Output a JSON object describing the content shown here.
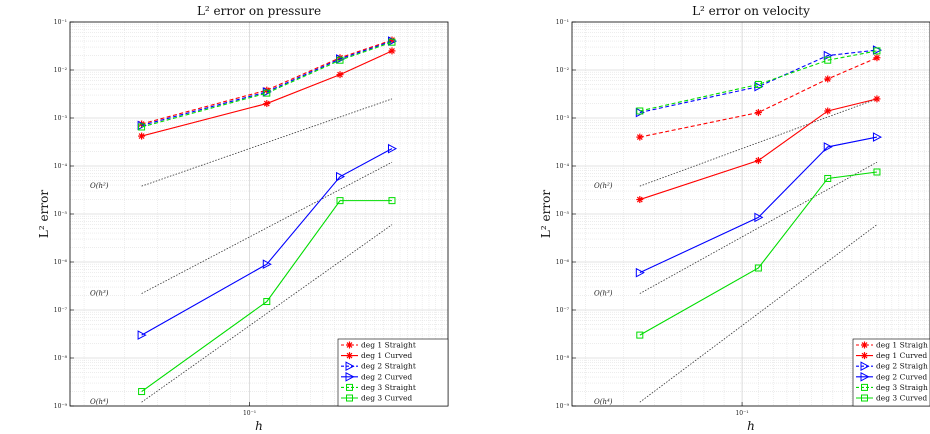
{
  "chart_data": [
    {
      "type": "line",
      "title": "L² error on pressure",
      "xlabel": "h",
      "ylabel": "L² error",
      "xscale": "log",
      "yscale": "log",
      "xlim": [
        0.037,
        0.3
      ],
      "ylim": [
        1e-09,
        0.1
      ],
      "x_tick_labels": [
        "10⁻¹"
      ],
      "y_tick_labels": [
        "10⁻⁹",
        "10⁻⁸",
        "10⁻⁷",
        "10⁻⁶",
        "10⁻⁵",
        "10⁻⁴",
        "10⁻³",
        "10⁻²",
        "10⁻¹"
      ],
      "grid": true,
      "legend_position": "bottom-right",
      "x": [
        0.055,
        0.11,
        0.165,
        0.22
      ],
      "series": [
        {
          "name": "deg 1 Straight",
          "color": "#ff0000",
          "dash": "dashed",
          "marker": "asterisk",
          "values": [
            0.00075,
            0.0038,
            0.018,
            0.042
          ]
        },
        {
          "name": "deg 1 Curved",
          "color": "#ff0000",
          "dash": "solid",
          "marker": "asterisk",
          "values": [
            0.00042,
            0.002,
            0.008,
            0.025
          ]
        },
        {
          "name": "deg 2 Straight",
          "color": "#0000ff",
          "dash": "dashed",
          "marker": "triangle-right",
          "values": [
            0.0007,
            0.0035,
            0.017,
            0.04
          ]
        },
        {
          "name": "deg 2 Curved",
          "color": "#0000ff",
          "dash": "solid",
          "marker": "triangle-right",
          "values": [
            3e-08,
            9e-07,
            6e-05,
            0.00023
          ]
        },
        {
          "name": "deg 3 Straight",
          "color": "#00dd00",
          "dash": "dashed",
          "marker": "square",
          "values": [
            0.00065,
            0.0033,
            0.016,
            0.038
          ]
        },
        {
          "name": "deg 3 Curved",
          "color": "#00dd00",
          "dash": "solid",
          "marker": "square",
          "values": [
            2e-09,
            1.5e-07,
            1.9e-05,
            1.9e-05
          ]
        }
      ],
      "reference_lines": [
        {
          "label": "O(h²)",
          "x": [
            0.055,
            0.22
          ],
          "values": [
            3.8e-05,
            0.0025
          ]
        },
        {
          "label": "O(h³)",
          "x": [
            0.055,
            0.22
          ],
          "values": [
            2.2e-07,
            0.00012
          ]
        },
        {
          "label": "O(h⁴)",
          "x": [
            0.055,
            0.22
          ],
          "values": [
            1.2e-09,
            6e-06
          ]
        }
      ]
    },
    {
      "type": "line",
      "title": "L² error on velocity",
      "xlabel": "h",
      "ylabel": "L² error",
      "xscale": "log",
      "yscale": "log",
      "xlim": [
        0.037,
        0.3
      ],
      "ylim": [
        1e-09,
        0.1
      ],
      "x_tick_labels": [
        "10⁻¹"
      ],
      "y_tick_labels": [
        "10⁻⁹",
        "10⁻⁸",
        "10⁻⁷",
        "10⁻⁶",
        "10⁻⁵",
        "10⁻⁴",
        "10⁻³",
        "10⁻²",
        "10⁻¹"
      ],
      "grid": true,
      "legend_position": "bottom-right",
      "x": [
        0.055,
        0.11,
        0.165,
        0.22
      ],
      "series": [
        {
          "name": "deg 1 Straigh",
          "color": "#ff0000",
          "dash": "dashed",
          "marker": "asterisk",
          "values": [
            0.0004,
            0.0013,
            0.0065,
            0.018
          ]
        },
        {
          "name": "deg 1 Curved",
          "color": "#ff0000",
          "dash": "solid",
          "marker": "asterisk",
          "values": [
            2e-05,
            0.00013,
            0.0014,
            0.0025
          ]
        },
        {
          "name": "deg 2 Straigh",
          "color": "#0000ff",
          "dash": "dashed",
          "marker": "triangle-right",
          "values": [
            0.0013,
            0.0045,
            0.02,
            0.026
          ]
        },
        {
          "name": "deg 2 Curved",
          "color": "#0000ff",
          "dash": "solid",
          "marker": "triangle-right",
          "values": [
            6e-07,
            8.5e-06,
            0.00025,
            0.0004
          ]
        },
        {
          "name": "deg 3 Straigh",
          "color": "#00dd00",
          "dash": "dashed",
          "marker": "square",
          "values": [
            0.0014,
            0.005,
            0.016,
            0.025
          ]
        },
        {
          "name": "deg 3 Curved",
          "color": "#00dd00",
          "dash": "solid",
          "marker": "square",
          "values": [
            3e-08,
            7.5e-07,
            5.5e-05,
            7.5e-05
          ]
        }
      ],
      "reference_lines": [
        {
          "label": "O(h²)",
          "x": [
            0.055,
            0.22
          ],
          "values": [
            3.8e-05,
            0.0025
          ]
        },
        {
          "label": "O(h³)",
          "x": [
            0.055,
            0.22
          ],
          "values": [
            2.2e-07,
            0.00012
          ]
        },
        {
          "label": "O(h⁴)",
          "x": [
            0.055,
            0.22
          ],
          "values": [
            1.2e-09,
            6e-06
          ]
        }
      ]
    }
  ]
}
